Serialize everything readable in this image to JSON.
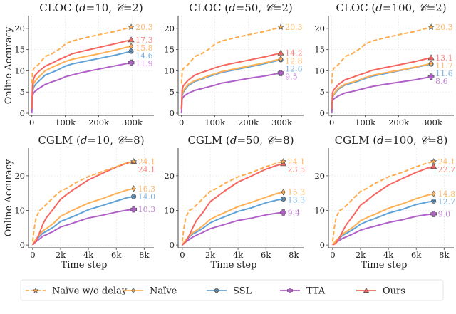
{
  "chart_data": {
    "type": "line",
    "legend": {
      "placement": "bottom-center",
      "entries": [
        {
          "key": "naive_nodelay",
          "label": "Naïve w/o delay",
          "color": "#FFAC4D",
          "dashed": true,
          "marker": "star"
        },
        {
          "key": "naive",
          "label": "Naïve",
          "color": "#FFB055",
          "dashed": false,
          "marker": "diamond"
        },
        {
          "key": "ssl",
          "label": "SSL",
          "color": "#5FA2D8",
          "dashed": false,
          "marker": "x-circle"
        },
        {
          "key": "tta",
          "label": "TTA",
          "color": "#B061C8",
          "dashed": false,
          "marker": "plus"
        },
        {
          "key": "ours",
          "label": "Ours",
          "color": "#F7655F",
          "dashed": false,
          "marker": "triangle"
        }
      ]
    },
    "label_colors": {
      "naive_nodelay": "#FFB868",
      "naive": "#FFB868",
      "ssl": "#7EB3DF",
      "tta": "#C27FD6",
      "ours": "#F88380"
    },
    "panels": [
      {
        "title_prefix": "CLOC (",
        "title_d": "d",
        "title_mid": "=10, ",
        "title_c": "𝒞",
        "title_suffix": "=2)",
        "ylabel": "Online Accuracy",
        "xlabel": "",
        "xlim": [
          -10000,
          365000
        ],
        "ylim": [
          -0.5,
          23
        ],
        "xticks": [
          0,
          100000,
          200000,
          300000
        ],
        "xticklabels": [
          "0",
          "100k",
          "200k",
          "300k"
        ],
        "yticks": [
          0,
          5,
          10,
          15,
          20
        ],
        "yticklabels": [
          "0",
          "5",
          "10",
          "15",
          "20"
        ],
        "x": [
          0,
          2000,
          5000,
          10000,
          20000,
          40000,
          60000,
          80000,
          100000,
          120000,
          150000,
          200000,
          250000,
          297000
        ],
        "series": {
          "naive_nodelay": [
            7,
            9.5,
            10.5,
            10.8,
            11.5,
            13.4,
            14.0,
            15.0,
            16.3,
            17.0,
            17.6,
            18.5,
            19.3,
            20.3
          ],
          "ours": [
            1,
            6.5,
            8.0,
            9.0,
            9.8,
            11.1,
            11.8,
            12.6,
            13.3,
            14.0,
            14.6,
            15.5,
            16.4,
            17.3
          ],
          "naive": [
            1,
            5.5,
            6.9,
            7.6,
            8.5,
            10.0,
            10.8,
            11.5,
            12.2,
            12.7,
            13.2,
            14.0,
            14.9,
            15.8
          ],
          "ssl": [
            1,
            5.0,
            6.0,
            6.7,
            7.5,
            9.0,
            9.6,
            10.3,
            11.1,
            11.6,
            12.1,
            12.9,
            13.7,
            14.6
          ],
          "tta": [
            0,
            4.0,
            4.8,
            5.2,
            5.8,
            6.8,
            7.4,
            7.9,
            8.6,
            9.0,
            9.6,
            10.4,
            11.2,
            11.9
          ]
        },
        "end_labels": {
          "naive_nodelay": "20.3",
          "ours": "17.3",
          "naive": "15.8",
          "ssl": "14.6",
          "tta": "11.9"
        },
        "label_order": [
          "naive_nodelay",
          "ours",
          "naive",
          "ssl",
          "tta"
        ]
      },
      {
        "title_prefix": "CLOC (",
        "title_d": "d",
        "title_mid": "=50, ",
        "title_c": "𝒞",
        "title_suffix": "=2)",
        "ylabel": "",
        "xlabel": "",
        "xlim": [
          -10000,
          365000
        ],
        "ylim": [
          -0.5,
          23
        ],
        "xticks": [
          0,
          100000,
          200000,
          300000
        ],
        "xticklabels": [
          "0",
          "100k",
          "200k",
          "300k"
        ],
        "yticks": [
          0,
          5,
          10,
          15,
          20
        ],
        "yticklabels": [
          "0",
          "5",
          "10",
          "15",
          "20"
        ],
        "x": [
          0,
          2000,
          5000,
          10000,
          20000,
          40000,
          60000,
          80000,
          100000,
          120000,
          150000,
          200000,
          250000,
          297000
        ],
        "series": {
          "naive_nodelay": [
            7,
            9.5,
            10.5,
            10.8,
            11.5,
            13.4,
            14.0,
            15.0,
            16.3,
            17.0,
            17.6,
            18.5,
            19.3,
            20.3
          ],
          "ours": [
            1,
            5.5,
            6.4,
            6.9,
            7.8,
            9.0,
            9.6,
            10.1,
            10.7,
            11.2,
            11.7,
            12.5,
            13.3,
            14.2
          ],
          "naive": [
            1,
            4.5,
            5.2,
            5.8,
            6.8,
            7.7,
            8.2,
            8.8,
            9.3,
            9.8,
            10.3,
            11.1,
            11.9,
            12.8
          ],
          "ssl": [
            1,
            4.2,
            4.9,
            5.5,
            6.5,
            7.5,
            8.0,
            8.6,
            9.1,
            9.6,
            10.1,
            10.9,
            11.7,
            12.6
          ],
          "tta": [
            0,
            3.3,
            3.8,
            4.2,
            4.7,
            5.4,
            5.8,
            6.2,
            6.6,
            7.1,
            7.5,
            8.2,
            8.8,
            9.5
          ]
        },
        "end_labels": {
          "naive_nodelay": "20.3",
          "ours": "14.2",
          "naive": "12.8",
          "ssl": "12.6",
          "tta": "9.5"
        },
        "label_order": [
          "naive_nodelay",
          "ours",
          "naive",
          "ssl",
          "tta"
        ]
      },
      {
        "title_prefix": "CLOC (",
        "title_d": "d",
        "title_mid": "=100, ",
        "title_c": "𝒞",
        "title_suffix": "=2)",
        "ylabel": "",
        "xlabel": "",
        "xlim": [
          -10000,
          365000
        ],
        "ylim": [
          -0.5,
          23
        ],
        "xticks": [
          0,
          100000,
          200000,
          300000
        ],
        "xticklabels": [
          "0",
          "100k",
          "200k",
          "300k"
        ],
        "yticks": [
          0,
          5,
          10,
          15,
          20
        ],
        "yticklabels": [
          "0",
          "5",
          "10",
          "15",
          "20"
        ],
        "x": [
          0,
          2000,
          5000,
          10000,
          20000,
          40000,
          60000,
          80000,
          100000,
          120000,
          150000,
          200000,
          250000,
          297000
        ],
        "series": {
          "naive_nodelay": [
            7,
            9.5,
            10.5,
            10.8,
            11.5,
            13.4,
            14.0,
            15.0,
            16.3,
            17.0,
            17.6,
            18.5,
            19.3,
            20.3
          ],
          "ours": [
            1,
            4.8,
            5.4,
            5.9,
            6.8,
            7.9,
            8.4,
            9.0,
            9.5,
            10.1,
            10.6,
            11.4,
            12.2,
            13.1
          ],
          "naive": [
            1,
            3.8,
            4.4,
            5.0,
            5.9,
            6.9,
            7.3,
            7.8,
            8.4,
            8.9,
            9.4,
            10.1,
            10.9,
            11.7
          ],
          "ssl": [
            1,
            3.6,
            4.2,
            4.8,
            5.7,
            6.7,
            7.1,
            7.6,
            8.2,
            8.7,
            9.2,
            10.0,
            10.8,
            11.6
          ],
          "tta": [
            0,
            2.9,
            3.3,
            3.6,
            4.1,
            4.8,
            5.1,
            5.5,
            5.9,
            6.3,
            6.7,
            7.3,
            7.9,
            8.6
          ]
        },
        "end_labels": {
          "naive_nodelay": "20.3",
          "ours": "13.1",
          "naive": "11.7",
          "ssl": "11.6",
          "tta": "8.6"
        },
        "label_order": [
          "naive_nodelay",
          "ours",
          "naive",
          "ssl",
          "tta"
        ]
      },
      {
        "title_prefix": "CGLM (",
        "title_d": "d",
        "title_mid": "=10, ",
        "title_c": "𝒞",
        "title_suffix": "=8)",
        "ylabel": "Online Accuracy",
        "xlabel": "Time step",
        "xlim": [
          -300,
          8700
        ],
        "ylim": [
          -0.8,
          28
        ],
        "xticks": [
          0,
          2000,
          4000,
          6000,
          8000
        ],
        "xticklabels": [
          "0",
          "2k",
          "4k",
          "6k",
          "8k"
        ],
        "yticks": [
          0,
          10,
          20
        ],
        "yticklabels": [
          "0",
          "10",
          "20"
        ],
        "x": [
          0,
          100,
          250,
          500,
          750,
          1000,
          1500,
          2000,
          2500,
          3000,
          4000,
          5000,
          6000,
          6800,
          7250
        ],
        "series": {
          "naive_nodelay": [
            1,
            4.5,
            8,
            10,
            10.8,
            11.8,
            13.8,
            15.6,
            16.5,
            17.8,
            19.8,
            21.2,
            22.6,
            23.8,
            24.1
          ],
          "ours": [
            0,
            0.6,
            1.2,
            3.6,
            6.2,
            8.0,
            10.5,
            13.2,
            14.8,
            16.2,
            18.8,
            20.7,
            22.5,
            23.7,
            24.1
          ],
          "naive": [
            0,
            0.8,
            1.8,
            3.0,
            4.2,
            4.8,
            6.3,
            8.3,
            9.3,
            10.3,
            12.1,
            13.4,
            14.9,
            15.9,
            16.3
          ],
          "ssl": [
            0,
            0.7,
            1.5,
            2.5,
            3.5,
            4.0,
            5.2,
            6.8,
            7.6,
            8.4,
            10.2,
            11.4,
            12.7,
            13.7,
            14.0
          ],
          "tta": [
            0,
            0.5,
            1.0,
            1.8,
            2.6,
            3.0,
            4.0,
            5.2,
            5.8,
            6.5,
            7.8,
            8.6,
            9.5,
            10.1,
            10.3
          ]
        },
        "end_labels": {
          "naive_nodelay": "24.1",
          "ours": "24.1",
          "naive": "16.3",
          "ssl": "14.0",
          "tta": "10.3"
        },
        "label_order": [
          "naive_nodelay",
          "ours",
          "naive",
          "ssl",
          "tta"
        ]
      },
      {
        "title_prefix": "CGLM (",
        "title_d": "d",
        "title_mid": "=50, ",
        "title_c": "𝒞",
        "title_suffix": "=8)",
        "ylabel": "",
        "xlabel": "Time step",
        "xlim": [
          -300,
          8700
        ],
        "ylim": [
          -0.8,
          28
        ],
        "xticks": [
          0,
          2000,
          4000,
          6000,
          8000
        ],
        "xticklabels": [
          "0",
          "2k",
          "4k",
          "6k",
          "8k"
        ],
        "yticks": [
          0,
          10,
          20
        ],
        "yticklabels": [
          "0",
          "10",
          "20"
        ],
        "x": [
          0,
          100,
          250,
          500,
          750,
          1000,
          1500,
          2000,
          2500,
          3000,
          4000,
          5000,
          6000,
          6800,
          7250
        ],
        "series": {
          "naive_nodelay": [
            1,
            4.5,
            8,
            10,
            10.5,
            11.5,
            13.5,
            15.5,
            16.4,
            17.7,
            19.7,
            21.0,
            22.6,
            23.7,
            24.1
          ],
          "ours": [
            0,
            0.4,
            1.0,
            2.8,
            5.0,
            7.0,
            9.5,
            12.5,
            14.0,
            15.5,
            18.2,
            20.0,
            21.9,
            23.0,
            23.5
          ],
          "naive": [
            0,
            0.7,
            1.5,
            2.6,
            3.6,
            4.2,
            5.6,
            7.4,
            8.4,
            9.3,
            11.1,
            12.4,
            13.8,
            14.9,
            15.3
          ],
          "ssl": [
            0,
            0.6,
            1.3,
            2.3,
            3.2,
            3.7,
            4.9,
            6.4,
            7.3,
            8.1,
            9.7,
            10.8,
            12.2,
            13.0,
            13.3
          ],
          "tta": [
            0,
            0.4,
            0.9,
            1.6,
            2.3,
            2.8,
            3.7,
            4.7,
            5.3,
            5.9,
            7.1,
            7.8,
            8.7,
            9.2,
            9.4
          ]
        },
        "end_labels": {
          "naive_nodelay": "24.1",
          "ours": "23.5",
          "naive": "15.3",
          "ssl": "13.3",
          "tta": "9.4"
        },
        "label_order": [
          "naive_nodelay",
          "ours",
          "naive",
          "ssl",
          "tta"
        ]
      },
      {
        "title_prefix": "CGLM (",
        "title_d": "d",
        "title_mid": "=100, ",
        "title_c": "𝒞",
        "title_suffix": "=8)",
        "ylabel": "",
        "xlabel": "Time step",
        "xlim": [
          -300,
          8700
        ],
        "ylim": [
          -0.8,
          28
        ],
        "xticks": [
          0,
          2000,
          4000,
          6000,
          8000
        ],
        "xticklabels": [
          "0",
          "2k",
          "4k",
          "6k",
          "8k"
        ],
        "yticks": [
          0,
          10,
          20
        ],
        "yticklabels": [
          "0",
          "10",
          "20"
        ],
        "x": [
          0,
          100,
          250,
          500,
          750,
          1000,
          1500,
          2000,
          2500,
          3000,
          4000,
          5000,
          6000,
          6800,
          7250
        ],
        "series": {
          "naive_nodelay": [
            1,
            4.5,
            8,
            10,
            10.5,
            11.5,
            13.5,
            15.5,
            16.4,
            17.7,
            19.7,
            21.0,
            22.6,
            23.7,
            24.1
          ],
          "ours": [
            0,
            0.2,
            0.6,
            2.2,
            4.2,
            6.0,
            8.6,
            11.5,
            13.0,
            14.6,
            17.3,
            19.2,
            21.0,
            22.2,
            22.7
          ],
          "naive": [
            0,
            0.6,
            1.3,
            2.3,
            3.3,
            3.9,
            5.3,
            7.0,
            8.0,
            8.8,
            10.6,
            11.9,
            13.4,
            14.4,
            14.8
          ],
          "ssl": [
            0,
            0.5,
            1.1,
            2.0,
            2.9,
            3.4,
            4.6,
            6.0,
            6.9,
            7.6,
            9.2,
            10.3,
            11.7,
            12.4,
            12.7
          ],
          "tta": [
            0,
            0.3,
            0.8,
            1.4,
            2.0,
            2.4,
            3.3,
            4.3,
            4.9,
            5.4,
            6.5,
            7.3,
            8.3,
            8.8,
            9.0
          ]
        },
        "end_labels": {
          "naive_nodelay": "24.1",
          "ours": "22.7",
          "naive": "14.8",
          "ssl": "12.7",
          "tta": "9.0"
        },
        "label_order": [
          "naive_nodelay",
          "ours",
          "naive",
          "ssl",
          "tta"
        ]
      }
    ]
  }
}
